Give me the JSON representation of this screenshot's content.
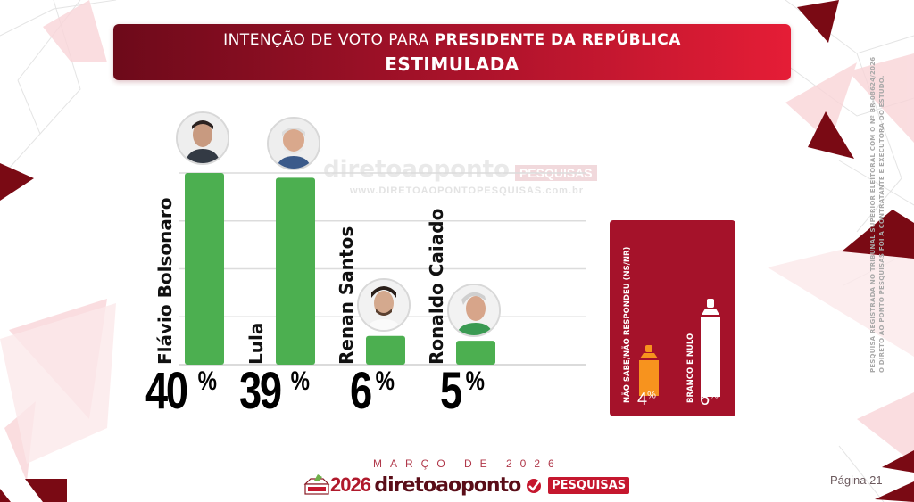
{
  "header": {
    "line1_regular": "INTENÇÃO DE VOTO PARA ",
    "line1_bold": "PRESIDENTE DA REPÚBLICA",
    "line2": "ESTIMULADA"
  },
  "chart_data": {
    "type": "bar",
    "title": "INTENÇÃO DE VOTO PARA PRESIDENTE DA REPÚBLICA - ESTIMULADA",
    "categories": [
      "Flávio Bolsonaro",
      "Lula",
      "Renan Santos",
      "Ronaldo Caiado"
    ],
    "values": [
      40,
      39,
      6,
      5
    ],
    "value_labels": [
      "40",
      "39",
      "6",
      "5"
    ],
    "unit": "%",
    "ylim": [
      0,
      40
    ],
    "grid": true,
    "bar_color": "#4caf50",
    "other_series": [
      {
        "name": "NÃO SABE/NÃO RESPONDEU (NS/NR)",
        "value": 4,
        "label": "4",
        "color": "#f7931e"
      },
      {
        "name": "BRANCO E NULO",
        "value": 6,
        "label": "6",
        "color": "#ffffff"
      }
    ]
  },
  "watermark": {
    "brand": "diretoaoponto",
    "tag": "PESQUISAS",
    "url": "www.DIRETOAOPONTOPESQUISAS.com.br"
  },
  "side_note": {
    "line1": "PESQUISA REGISTRADA NO TRIBUNAL SUPERIOR ELEITORAL COM O Nº BR-08624/2026",
    "line2": "O DIRETO AO PONTO PESQUISAS FOI A CONTRATANTE E EXECUTORA DO ESTUDO."
  },
  "footer": {
    "date": "MARÇO DE 2026",
    "logo_year": "2026",
    "logo_brand": "diretoaoponto",
    "logo_tag": "PESQUISAS",
    "ballot_label": "ELEIÇÕES",
    "page": "Página 21"
  },
  "colors": {
    "accent_dark": "#6d0a1a",
    "accent_red": "#e51d36",
    "panel": "#a5122a",
    "bar": "#4caf50"
  }
}
